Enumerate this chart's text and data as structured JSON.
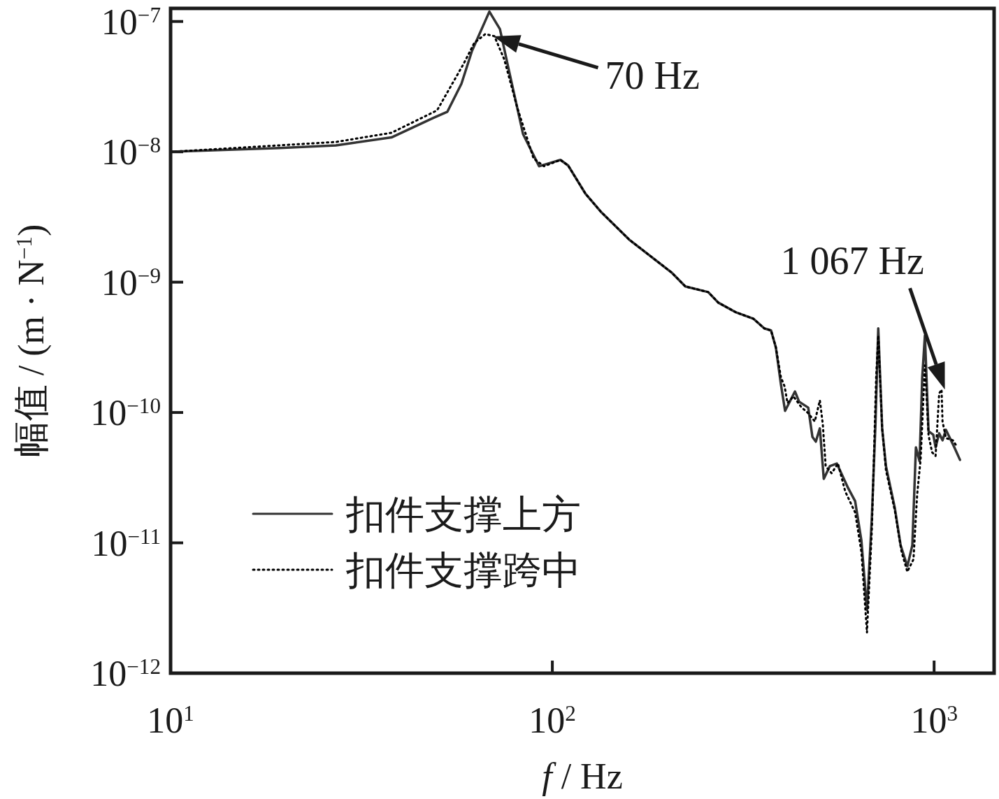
{
  "chart_data": {
    "type": "line",
    "xlabel": "*f* / Hz",
    "ylabel": "幅值 / (m · N$^{−1}$)",
    "log": "xy",
    "grid": false,
    "legend": "bottom left",
    "xlim": [
      10,
      1436
    ],
    "ylim": [
      1e-12,
      1.26e-07
    ],
    "xticks": [
      {
        "value": 10,
        "label": "10$^{1}$"
      },
      {
        "value": 100,
        "label": "10$^{2}$"
      },
      {
        "value": 1000,
        "label": "10$^{3}$"
      }
    ],
    "yticks": [
      {
        "value": 1e-12,
        "label": "10$^{−12}$"
      },
      {
        "value": 1e-11,
        "label": "10$^{−11}$"
      },
      {
        "value": 1e-10,
        "label": "10$^{−10}$"
      },
      {
        "value": 1e-09,
        "label": "10$^{−9}$"
      },
      {
        "value": 1e-08,
        "label": "10$^{−8}$"
      },
      {
        "value": 1e-07,
        "label": "10$^{−7}$"
      }
    ],
    "annotations": [
      {
        "text": "70 Hz",
        "x": 70,
        "y": 7.7e-08
      },
      {
        "text": "1 067 Hz",
        "x": 1067,
        "y": 1.5e-10
      }
    ],
    "series": [
      {
        "name": "扣件支撑上方",
        "color": "#333333",
        "line_style": "solid",
        "x": [
          10,
          19.3,
          27.1,
          37.9,
          48.8,
          53.1,
          57.8,
          61.6,
          68.4,
          72.9,
          76.9,
          83.8,
          92.3,
          105,
          110,
          122,
          134,
          159,
          205,
          223,
          256,
          272,
          303,
          336,
          359,
          374,
          385,
          397,
          407,
          432,
          443,
          468,
          480,
          490,
          502,
          514,
          533,
          556,
          595,
          621,
          645,
          667,
          687,
          702,
          714,
          731,
          748,
          789,
          817,
          851,
          877,
          896,
          916,
          931,
          946,
          967,
          995,
          1009,
          1031,
          1052,
          1074,
          1130,
          1169
        ],
        "values": [
          1e-08,
          1.07e-08,
          1.12e-08,
          1.29e-08,
          1.82e-08,
          2.03e-08,
          3.33e-08,
          5.95e-08,
          1.19e-07,
          8.73e-08,
          4.26e-08,
          1.37e-08,
          7.75e-09,
          8.67e-09,
          7.85e-09,
          4.79e-09,
          3.47e-09,
          2.12e-09,
          1.19e-09,
          9.27e-10,
          8.39e-10,
          6.97e-10,
          5.86e-10,
          5.25e-10,
          4.42e-10,
          4.26e-10,
          3.16e-10,
          1.64e-10,
          1.03e-10,
          1.45e-10,
          1.21e-10,
          1.09e-10,
          6.5e-11,
          5.97e-11,
          7.55e-11,
          3.1e-11,
          3.87e-11,
          4.06e-11,
          2.64e-11,
          2.09e-11,
          1.04e-11,
          3.04e-12,
          1.57e-11,
          8.13e-11,
          4.42e-10,
          7.55e-11,
          3.87e-11,
          1.85e-11,
          9.6e-12,
          6.6e-12,
          9.6e-12,
          5.4e-11,
          4.23e-11,
          1.86e-10,
          3.9e-10,
          7.18e-11,
          6.75e-11,
          5.4e-11,
          6.92e-11,
          6.12e-11,
          7.36e-11,
          5.4e-11,
          4.33e-11
        ]
      },
      {
        "name": "扣件支撑跨中",
        "color": "#000000",
        "line_style": "dotted",
        "x": [
          10,
          27.1,
          37.9,
          49.9,
          58.5,
          62.4,
          66.7,
          70.5,
          74.8,
          80.9,
          89.3,
          95.1,
          105,
          110,
          122,
          134,
          159,
          205,
          223,
          256,
          272,
          303,
          336,
          359,
          374,
          385,
          397,
          406,
          413,
          428,
          450,
          466,
          487,
          502,
          511,
          520,
          539,
          560,
          585,
          621,
          645,
          667,
          687,
          705,
          714,
          731,
          748,
          789,
          822,
          851,
          883,
          903,
          922,
          946,
          967,
          988,
          1009,
          1031,
          1046,
          1052,
          1074,
          1120,
          1151
        ],
        "values": [
          1e-08,
          1.19e-08,
          1.4e-08,
          2.08e-08,
          4.71e-08,
          6.82e-08,
          8e-08,
          7.71e-08,
          5.13e-08,
          2.19e-08,
          8.89e-09,
          7.75e-09,
          8.67e-09,
          7.85e-09,
          4.79e-09,
          3.47e-09,
          2.12e-09,
          1.19e-09,
          9.27e-10,
          8.39e-10,
          6.97e-10,
          5.86e-10,
          5.25e-10,
          4.42e-10,
          4.26e-10,
          3.16e-10,
          1.86e-10,
          1.58e-10,
          1.18e-10,
          1.33e-10,
          1.09e-10,
          1e-10,
          8.54e-11,
          1.24e-10,
          8.13e-11,
          3.87e-11,
          3.42e-11,
          4.06e-11,
          2.48e-11,
          1.71e-11,
          8.5e-12,
          2.05e-12,
          1.27e-11,
          1.86e-10,
          3.9e-10,
          7.55e-11,
          3.6e-11,
          1.77e-11,
          8.5e-12,
          6e-12,
          7.48e-12,
          2.36e-11,
          4.39e-11,
          2.3e-10,
          6.67e-11,
          4.95e-11,
          4.64e-11,
          1.4e-10,
          1.5e-10,
          8.54e-11,
          6.36e-11,
          6.12e-11,
          5.4e-11
        ]
      }
    ]
  }
}
